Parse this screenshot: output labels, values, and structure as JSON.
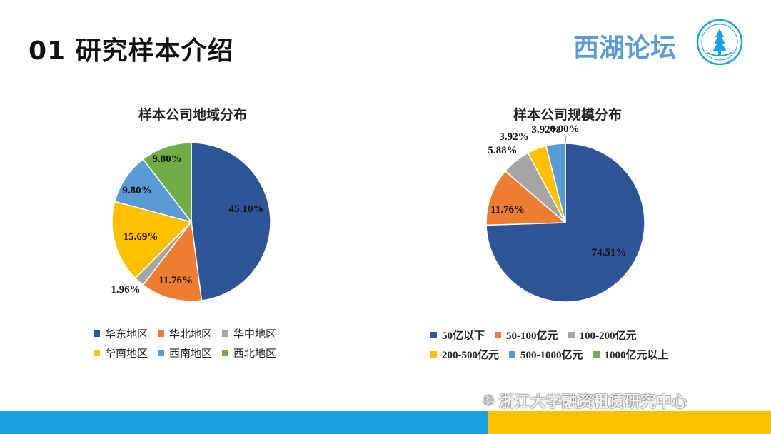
{
  "header": {
    "title": "01 研究样本介绍",
    "brand": "西湖论坛"
  },
  "footer": {
    "watermark": "浙江大学融资租赁研究中心",
    "bar_colors": [
      "#1ba1df",
      "#ffc000"
    ]
  },
  "chart_data": [
    {
      "type": "pie",
      "title": "样本公司地域分布",
      "categories": [
        "华东地区",
        "华北地区",
        "华中地区",
        "华南地区",
        "西南地区",
        "西北地区"
      ],
      "values": [
        45.1,
        11.76,
        1.96,
        15.69,
        9.8,
        9.8
      ],
      "labels": [
        "45.10%",
        "11.76%",
        "1.96%",
        "15.69%",
        "9.80%",
        "9.80%"
      ],
      "colors": [
        "#2f5597",
        "#ed7d31",
        "#a5a5a5",
        "#ffc000",
        "#5b9bd5",
        "#70ad47"
      ],
      "legend": "bottom"
    },
    {
      "type": "pie",
      "title": "样本公司规模分布",
      "categories": [
        "50亿以下",
        "50-100亿元",
        "100-200亿元",
        "200-500亿元",
        "500-1000亿元",
        "1000亿元以上"
      ],
      "values": [
        74.51,
        11.76,
        5.88,
        3.92,
        3.92,
        0.0
      ],
      "labels": [
        "74.51%",
        "11.76%",
        "5.88%",
        "3.92%",
        "3.92%",
        "0.00%"
      ],
      "colors": [
        "#2f5597",
        "#ed7d31",
        "#a5a5a5",
        "#ffc000",
        "#5b9bd5",
        "#70ad47"
      ],
      "legend": "bottom"
    }
  ]
}
